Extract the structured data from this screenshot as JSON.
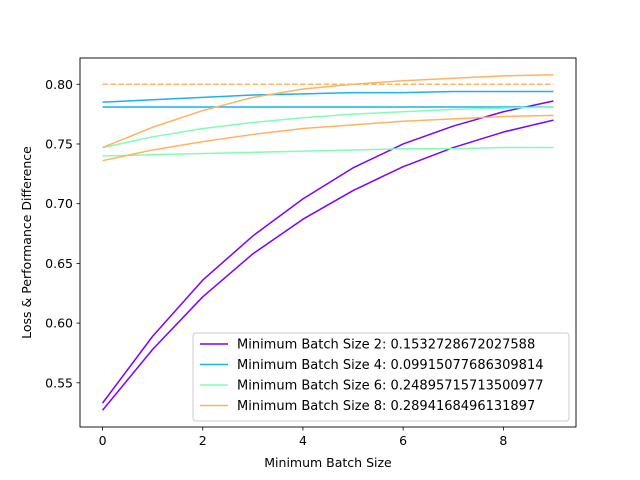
{
  "chart_data": {
    "type": "line",
    "title": "",
    "xlabel": "Minimum Batch Size",
    "ylabel": "Loss & Performance Difference",
    "xlim": [
      -0.45,
      9.45
    ],
    "ylim": [
      0.513,
      0.822
    ],
    "xticks": [
      0,
      2,
      4,
      6,
      8
    ],
    "yticks": [
      0.55,
      0.6,
      0.65,
      0.7,
      0.75,
      0.8
    ],
    "ytick_labels": [
      "0.55",
      "0.60",
      "0.65",
      "0.70",
      "0.75",
      "0.80"
    ],
    "grid": false,
    "legend_position": "lower-right",
    "x": [
      0,
      1,
      2,
      3,
      4,
      5,
      6,
      7,
      8,
      9
    ],
    "series": [
      {
        "name": "Minimum Batch Size 2: 0.1532728672027588",
        "color": "#7f00ff",
        "lines": [
          {
            "style": "solid",
            "values": [
              0.533,
              0.589,
              0.636,
              0.673,
              0.704,
              0.73,
              0.75,
              0.765,
              0.777,
              0.786
            ]
          },
          {
            "style": "solid",
            "values": [
              0.527,
              0.578,
              0.622,
              0.658,
              0.687,
              0.711,
              0.731,
              0.747,
              0.76,
              0.77
            ]
          }
        ]
      },
      {
        "name": "Minimum Batch Size 4: 0.09915077686309814",
        "color": "#1ab2f2",
        "lines": [
          {
            "style": "solid",
            "values": [
              0.785,
              0.787,
              0.789,
              0.791,
              0.792,
              0.793,
              0.793,
              0.794,
              0.794,
              0.794
            ]
          },
          {
            "style": "solid",
            "values": [
              0.781,
              0.781,
              0.781,
              0.781,
              0.781,
              0.781,
              0.781,
              0.781,
              0.781,
              0.781
            ]
          }
        ]
      },
      {
        "name": "Minimum Batch Size 6: 0.24895715713500977",
        "color": "#80ffb4",
        "lines": [
          {
            "style": "solid",
            "values": [
              0.747,
              0.756,
              0.763,
              0.768,
              0.772,
              0.775,
              0.777,
              0.779,
              0.78,
              0.781
            ]
          },
          {
            "style": "solid",
            "values": [
              0.74,
              0.741,
              0.742,
              0.743,
              0.744,
              0.745,
              0.746,
              0.746,
              0.747,
              0.747
            ]
          }
        ]
      },
      {
        "name": "Minimum Batch Size 8: 0.2894168496131897",
        "color": "#ffb360",
        "lines": [
          {
            "style": "solid",
            "values": [
              0.747,
              0.764,
              0.778,
              0.789,
              0.796,
              0.8,
              0.803,
              0.805,
              0.807,
              0.808
            ]
          },
          {
            "style": "solid",
            "values": [
              0.736,
              0.745,
              0.752,
              0.758,
              0.763,
              0.766,
              0.769,
              0.771,
              0.773,
              0.774
            ]
          },
          {
            "style": "dashed",
            "values": [
              0.8,
              0.8,
              0.8,
              0.8,
              0.8,
              0.8,
              0.8,
              0.8,
              0.8,
              0.8
            ]
          }
        ]
      }
    ]
  }
}
